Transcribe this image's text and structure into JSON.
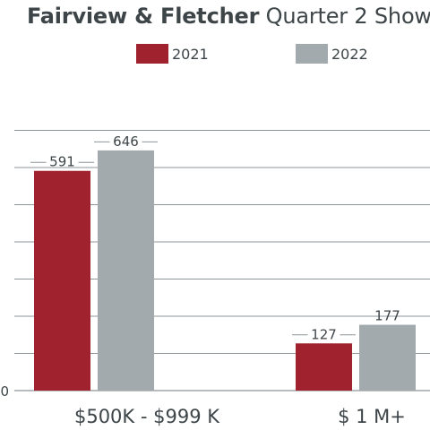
{
  "title_bold": "Fairview & Fletcher",
  "title_rest": "Quarter 2 Show",
  "colors": {
    "2021": "#a0222f",
    "2022": "#a3aaae",
    "grid": "#8e9598",
    "text": "#3d4548"
  },
  "chart_data": {
    "type": "bar",
    "categories": [
      "$500K - $999 K",
      "$ 1 M+"
    ],
    "series": [
      {
        "name": "2021",
        "values": [
          591,
          127
        ]
      },
      {
        "name": "2022",
        "values": [
          646,
          177
        ]
      }
    ],
    "ylim": [
      0,
      700
    ],
    "y_tick_labels": [
      "0"
    ],
    "grid": true,
    "legend": "top-center"
  }
}
